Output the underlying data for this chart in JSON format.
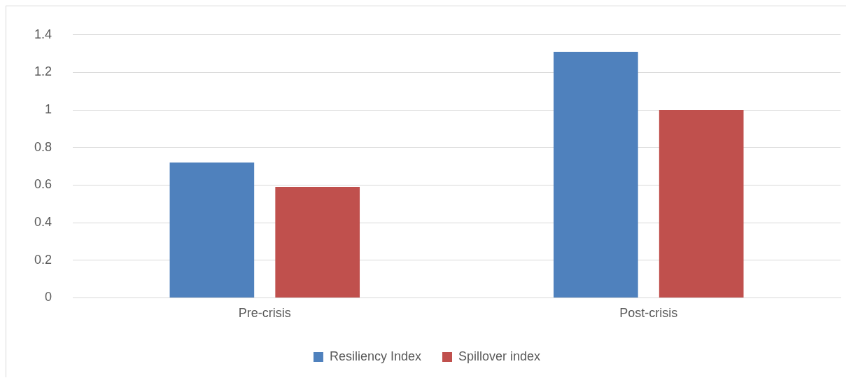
{
  "chart_data": {
    "type": "bar",
    "categories": [
      "Pre-crisis",
      "Post-crisis"
    ],
    "series": [
      {
        "name": "Resiliency Index",
        "color": "#4f81bd",
        "values": [
          0.72,
          1.31
        ]
      },
      {
        "name": "Spillover index",
        "color": "#c0504d",
        "values": [
          0.59,
          1.0
        ]
      }
    ],
    "ylim": [
      0,
      1.4
    ],
    "yticks": [
      0,
      0.2,
      0.4,
      0.6,
      0.8,
      1,
      1.2,
      1.4
    ],
    "grid": "y",
    "legend": "bottom"
  }
}
